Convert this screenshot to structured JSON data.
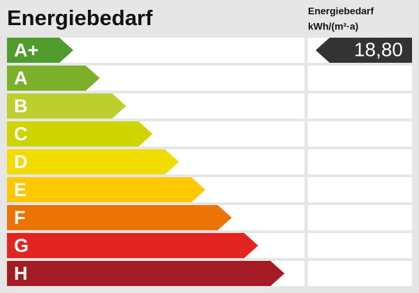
{
  "header": {
    "title": "Energiebedarf",
    "column_title": "Energiebedarf",
    "column_unit": "kWh/(m²·a)"
  },
  "classes": [
    {
      "label": "A+",
      "color": "#4f9b2b",
      "value": "18,80"
    },
    {
      "label": "A",
      "color": "#7db02a"
    },
    {
      "label": "B",
      "color": "#bccf2f"
    },
    {
      "label": "C",
      "color": "#cdd400"
    },
    {
      "label": "D",
      "color": "#f0dc00"
    },
    {
      "label": "E",
      "color": "#fdc800"
    },
    {
      "label": "F",
      "color": "#ec7404"
    },
    {
      "label": "G",
      "color": "#e42421"
    },
    {
      "label": "H",
      "color": "#a51b24"
    }
  ],
  "value_color": "#333333"
}
